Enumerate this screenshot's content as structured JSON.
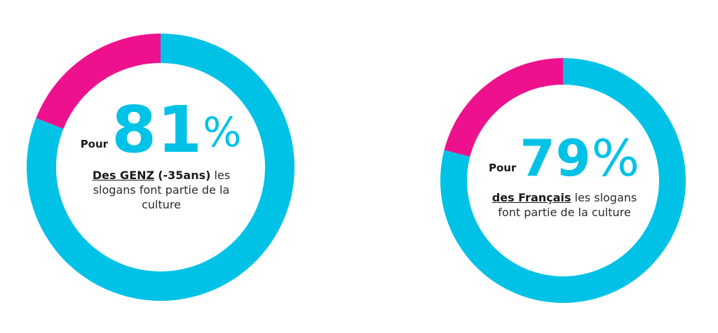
{
  "colors": {
    "main": "#00c2e6",
    "rest": "#ee118e"
  },
  "chart_data": [
    {
      "type": "pie",
      "slices": [
        {
          "label": "",
          "value": 81,
          "color": "#00c2e6"
        },
        {
          "label": "",
          "value": 19,
          "color": "#ee118e"
        }
      ],
      "center": {
        "prefix": "Pour",
        "number": "81",
        "percent_sign": "%",
        "audience": "Des GENZ",
        "audience_detail": "(-35ans)",
        "text_line1": "les",
        "text_line2": "slogans font partie de la",
        "text_line3": "culture"
      }
    },
    {
      "type": "pie",
      "slices": [
        {
          "label": "",
          "value": 79,
          "color": "#00c2e6"
        },
        {
          "label": "",
          "value": 21,
          "color": "#ee118e"
        }
      ],
      "center": {
        "prefix": "Pour",
        "number": "79",
        "percent_sign": "%",
        "audience": "des Français",
        "text_line1": "les slogans",
        "text_line2": "font partie de la culture"
      }
    }
  ]
}
